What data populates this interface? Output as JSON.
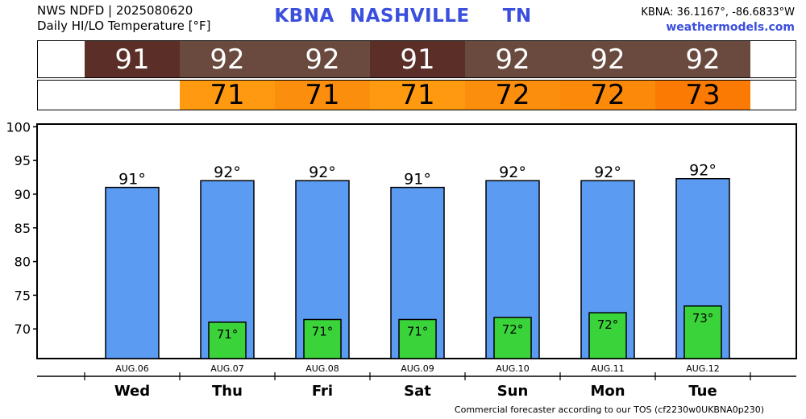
{
  "header": {
    "line1": "NWS NDFD | 2025080620",
    "line2": "Daily HI/LO Temperature [°F]",
    "station": "KBNA",
    "city": "NASHVILLE",
    "state": "TN",
    "coords": "KBNA: 36.1167°, -86.6833°W",
    "site": "weathermodels.com"
  },
  "footer": "Commercial forecaster according to our TOS (cf2230w0UKBNA0p230)",
  "colors": {
    "bar_hi": "#5b9cf2",
    "bar_lo": "#3ad43a",
    "hi_strip": [
      "#5c2e28",
      "#6a4a3e",
      "#6a4a3e",
      "#5c2e28",
      "#6a4a3e",
      "#6a4a3e",
      "#6a4a3e"
    ],
    "lo_strip": [
      null,
      "#ff9a10",
      "#fb8e0c",
      "#ff9a10",
      "#fb8e0c",
      "#fb8a0a",
      "#fb7a04"
    ]
  },
  "chart_data": {
    "type": "bar",
    "categories": [
      "Wed",
      "Thu",
      "Fri",
      "Sat",
      "Sun",
      "Mon",
      "Tue"
    ],
    "dates": [
      "AUG.06",
      "AUG.07",
      "AUG.08",
      "AUG.09",
      "AUG.10",
      "AUG.11",
      "AUG.12"
    ],
    "series": [
      {
        "values": [
          91,
          92,
          92,
          91,
          92,
          92,
          92.3
        ]
      },
      {
        "values": [
          null,
          71,
          71.4,
          71.4,
          71.7,
          72.4,
          73.4
        ]
      }
    ],
    "hi_labels": [
      "91°",
      "92°",
      "92°",
      "91°",
      "92°",
      "92°",
      "92°"
    ],
    "lo_labels": [
      "",
      "71°",
      "71°",
      "71°",
      "72°",
      "72°",
      "73°"
    ],
    "hi_strip": [
      "91",
      "92",
      "92",
      "91",
      "92",
      "92",
      "92"
    ],
    "lo_strip": [
      "",
      "71",
      "71",
      "71",
      "72",
      "72",
      "73"
    ],
    "yticks": [
      70,
      75,
      80,
      85,
      90,
      95,
      100
    ],
    "ylim": [
      65.6,
      100.4
    ],
    "grid": false
  }
}
